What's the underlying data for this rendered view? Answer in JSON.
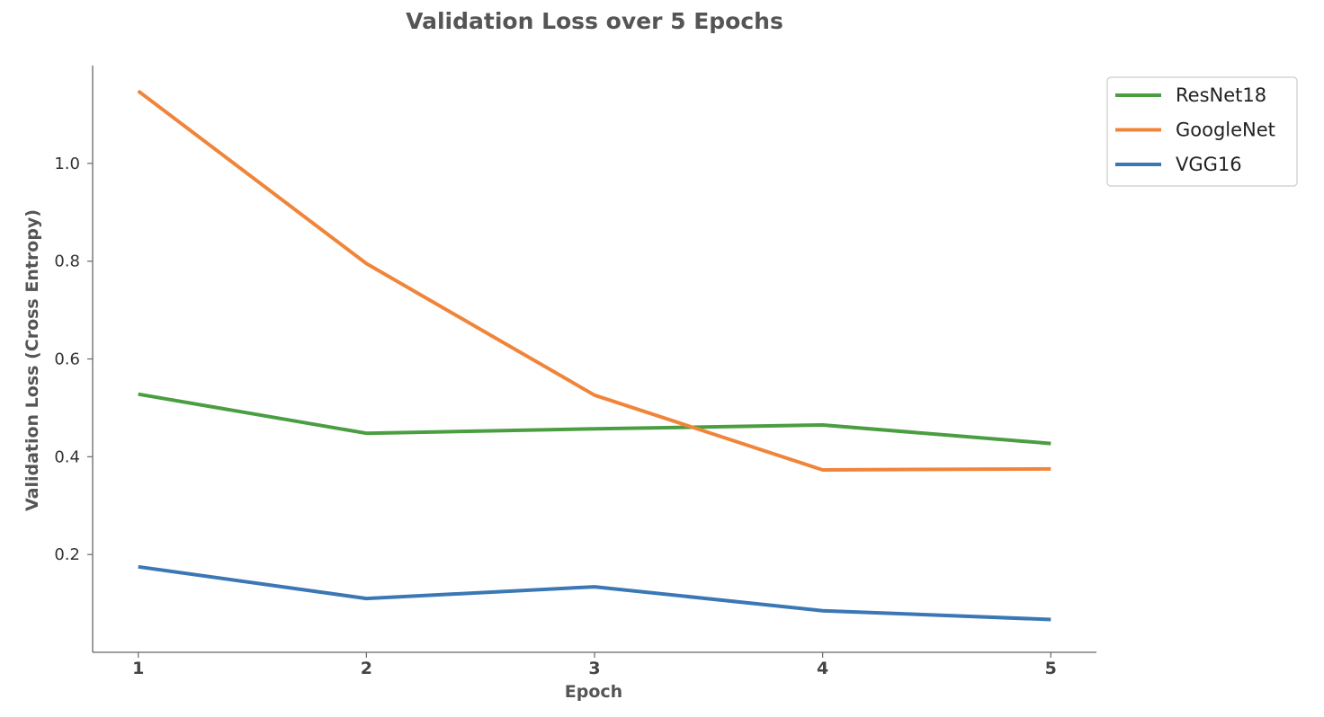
{
  "chart_data": {
    "type": "line",
    "title": "Validation Loss over 5 Epochs",
    "xlabel": "Epoch",
    "ylabel": "Validation Loss (Cross Entropy)",
    "x": [
      1,
      2,
      3,
      4,
      5
    ],
    "xlim": [
      0.8,
      5.2
    ],
    "ylim": [
      0.0,
      1.2
    ],
    "yticks": [
      0.2,
      0.4,
      0.6,
      0.8,
      1.0
    ],
    "grid": false,
    "legend_position": "upper-right-outside",
    "series": [
      {
        "name": "ResNet18",
        "color": "#4a9e41",
        "values": [
          0.528,
          0.448,
          0.457,
          0.465,
          0.427
        ]
      },
      {
        "name": "GoogleNet",
        "color": "#f0853a",
        "values": [
          1.148,
          0.795,
          0.526,
          0.373,
          0.375
        ]
      },
      {
        "name": "VGG16",
        "color": "#3b77b5",
        "values": [
          0.175,
          0.11,
          0.134,
          0.085,
          0.067
        ]
      }
    ]
  }
}
